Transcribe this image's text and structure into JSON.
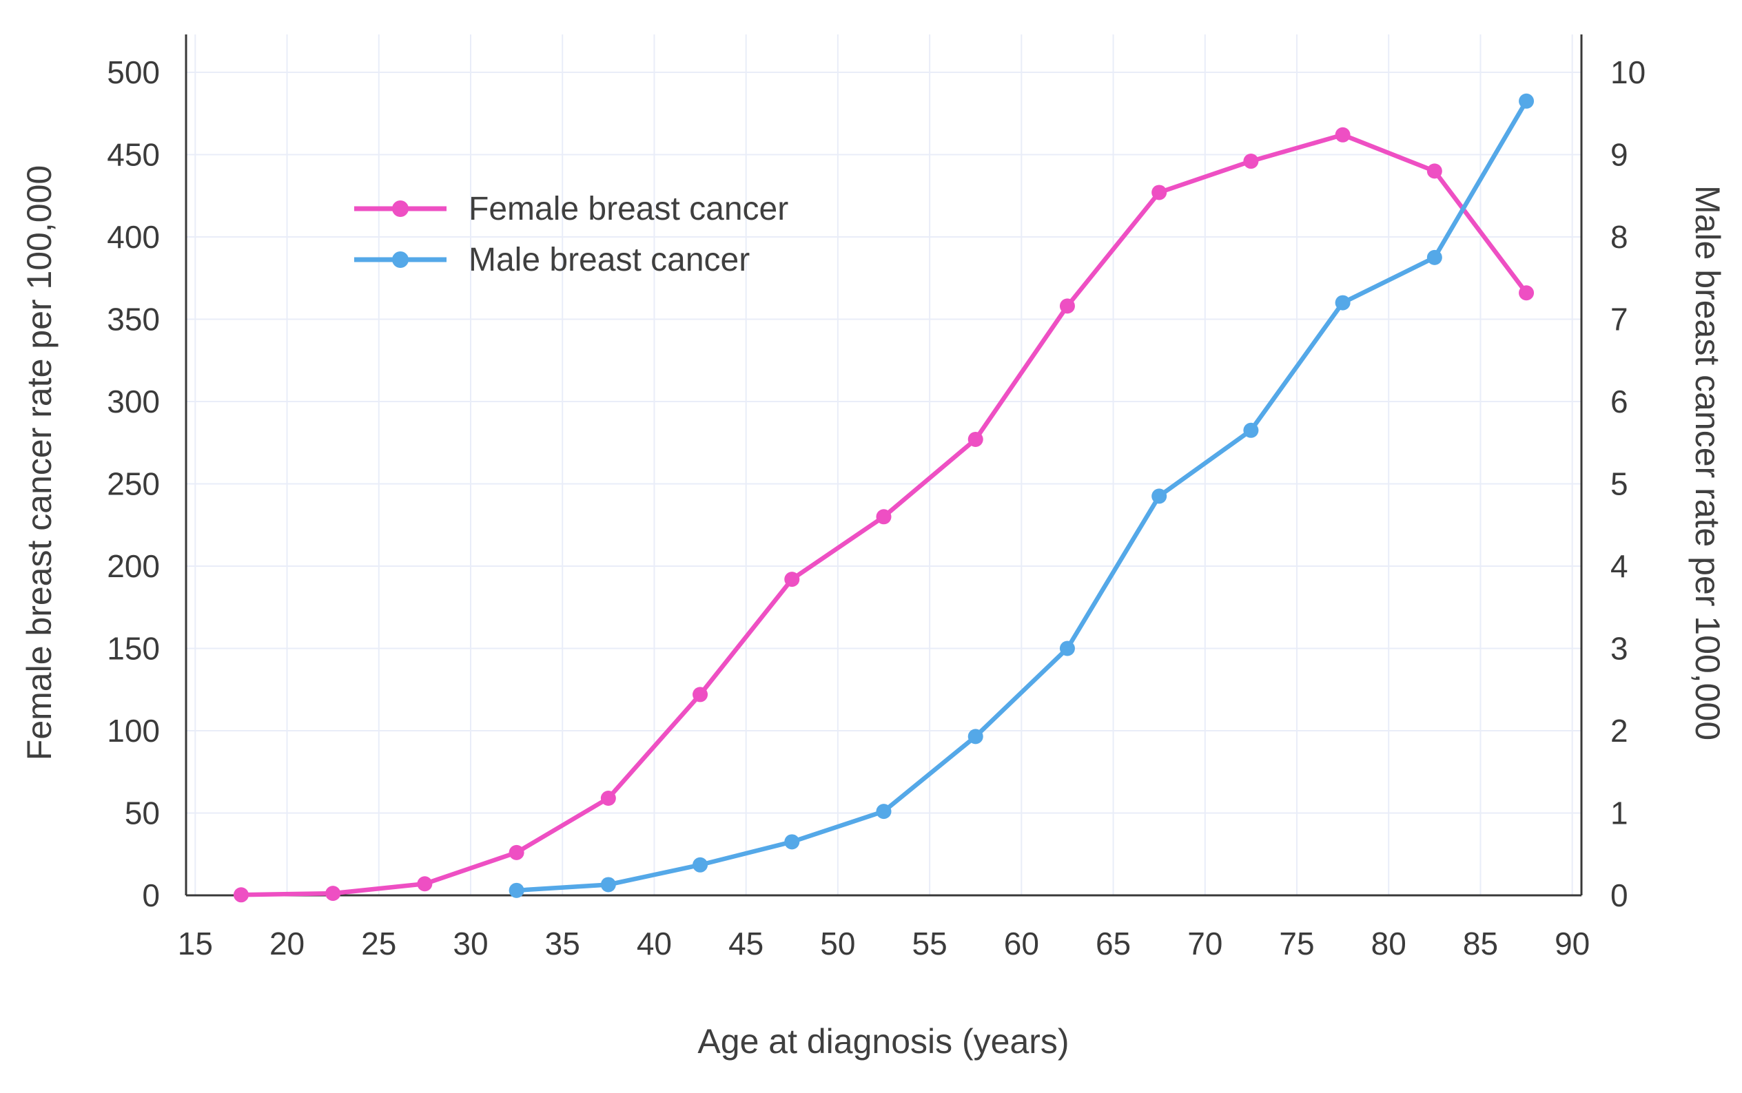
{
  "chart_data": {
    "type": "line",
    "title": "",
    "xlabel": "Age at diagnosis (years)",
    "ylabel_left": "Female breast cancer rate per 100,000",
    "ylabel_right": "Male breast cancer rate per 100,000",
    "xlim": [
      14.5,
      90.5
    ],
    "ylim_left": [
      0,
      523
    ],
    "ylim_right": [
      0,
      10.46
    ],
    "x_ticks": [
      15,
      20,
      25,
      30,
      35,
      40,
      45,
      50,
      55,
      60,
      65,
      70,
      75,
      80,
      85,
      90
    ],
    "y_ticks_left": [
      0,
      50,
      100,
      150,
      200,
      250,
      300,
      350,
      400,
      450,
      500
    ],
    "y_ticks_right": [
      0,
      1,
      2,
      3,
      4,
      5,
      6,
      7,
      8,
      9,
      10
    ],
    "grid": true,
    "legend_position": "inside-upper-left",
    "colors": {
      "grid": "#e9edf8",
      "axis": "#383838",
      "text": "#3b3b3b",
      "background": "#ffffff"
    },
    "series": [
      {
        "id": "female",
        "name": "Female breast cancer",
        "axis": "left",
        "color": "#ee4fc3",
        "marker": "circle",
        "x": [
          17.5,
          22.5,
          27.5,
          32.5,
          37.5,
          42.5,
          47.5,
          52.5,
          57.5,
          62.5,
          67.5,
          72.5,
          77.5,
          82.5,
          87.5
        ],
        "y": [
          0.3,
          1.2,
          7,
          26,
          59,
          122,
          192,
          230,
          277,
          358,
          427,
          446,
          462,
          440,
          366
        ]
      },
      {
        "id": "male",
        "name": "Male breast cancer",
        "axis": "right",
        "color": "#54a8e8",
        "marker": "circle",
        "x": [
          32.5,
          37.5,
          42.5,
          47.5,
          52.5,
          57.5,
          62.5,
          67.5,
          72.5,
          77.5,
          82.5,
          87.5
        ],
        "y": [
          0.06,
          0.13,
          0.37,
          0.65,
          1.02,
          1.93,
          3.0,
          4.85,
          5.65,
          7.2,
          7.75,
          9.65
        ]
      }
    ]
  }
}
